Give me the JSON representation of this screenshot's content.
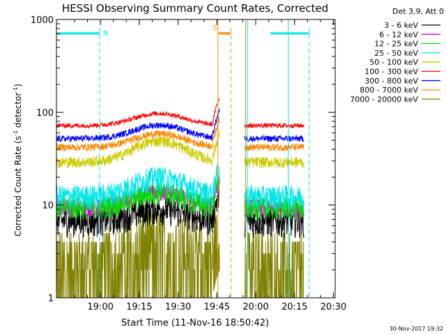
{
  "chart_data": {
    "type": "line",
    "title": "HESSI Observing Summary Count Rates, Corrected",
    "xlabel": "Start Time (11-Nov-16 18:50:42)",
    "ylabel_main": "Corrected Count Rate (s",
    "ylabel_sup1": "-1",
    "ylabel_mid": " detector",
    "ylabel_sup2": "-1",
    "ylabel_end": ")",
    "yscale": "log",
    "ylim": [
      1,
      1000
    ],
    "xlim_minutes_after_start": [
      -7.7,
      100
    ],
    "x_ticks": [
      {
        "label": "19:00",
        "min": 9.3
      },
      {
        "label": "19:15",
        "min": 24.3
      },
      {
        "label": "19:30",
        "min": 39.3
      },
      {
        "label": "19:45",
        "min": 54.3
      },
      {
        "label": "20:00",
        "min": 69.3
      },
      {
        "label": "20:15",
        "min": 84.3
      },
      {
        "label": "20:30",
        "min": 99.3
      }
    ],
    "y_ticks": [
      {
        "label": "1",
        "value": 1
      },
      {
        "label": "10",
        "value": 10
      },
      {
        "label": "100",
        "value": 100
      },
      {
        "label": "1000",
        "value": 1000
      }
    ],
    "legend_header": "Det 3,9, Att 0",
    "legend_position": "right",
    "series": [
      {
        "name": "3 - 6 keV",
        "color": "#000000",
        "base": 6.8,
        "bump": 1.35,
        "noise": 0.35
      },
      {
        "name": "6 - 12 keV",
        "color": "#e000e0",
        "base": 9.5,
        "bump": 1.45,
        "noise": 0.22
      },
      {
        "name": "12 - 25 keV",
        "color": "#00dd00",
        "base": 9.5,
        "bump": 1.45,
        "noise": 0.28
      },
      {
        "name": "25 - 50 keV",
        "color": "#00e5e5",
        "base": 12.5,
        "bump": 1.6,
        "noise": 0.3
      },
      {
        "name": "50 - 100 keV",
        "color": "#cccc00",
        "base": 29,
        "bump": 1.7,
        "noise": 0.14
      },
      {
        "name": "100 - 300 keV",
        "color": "#ff0000",
        "base": 72,
        "bump": 1.35,
        "noise": 0.06
      },
      {
        "name": "300 - 800 keV",
        "color": "#0000ff",
        "base": 52,
        "bump": 1.4,
        "noise": 0.08
      },
      {
        "name": "800 - 7000 keV",
        "color": "#ff8800",
        "base": 42,
        "bump": 1.4,
        "noise": 0.09
      },
      {
        "name": "7000 - 20000 keV",
        "color": "#808000",
        "base": 2.6,
        "bump": 1.8,
        "noise": 1.0
      }
    ],
    "segments_minutes": [
      [
        -7.7,
        55.4
      ],
      [
        65.0,
        88.0
      ]
    ],
    "intervals": [
      {
        "label": "N",
        "color": "#00e5e5",
        "start_min": -7.7,
        "end_min": 9.0,
        "dashed_at": 9.0
      },
      {
        "label": "S",
        "color": "#ff8800",
        "start_min": 55.0,
        "end_min": 59.7,
        "dashed_at": 59.7
      },
      {
        "label": "",
        "color": "#00e5e5",
        "start_min": 75.0,
        "end_min": 90.0,
        "dashed_at": 90.0
      }
    ],
    "vertical_solid_markers_min": [
      {
        "min": 54.7,
        "color": "#ff8800"
      },
      {
        "min": 65.4,
        "color": "#ff8800"
      },
      {
        "min": 66.1,
        "color": "#00e5e5"
      },
      {
        "min": 81.9,
        "color": "#00e5e5"
      }
    ]
  },
  "footer_date": "30-Nov-2017 19:32"
}
